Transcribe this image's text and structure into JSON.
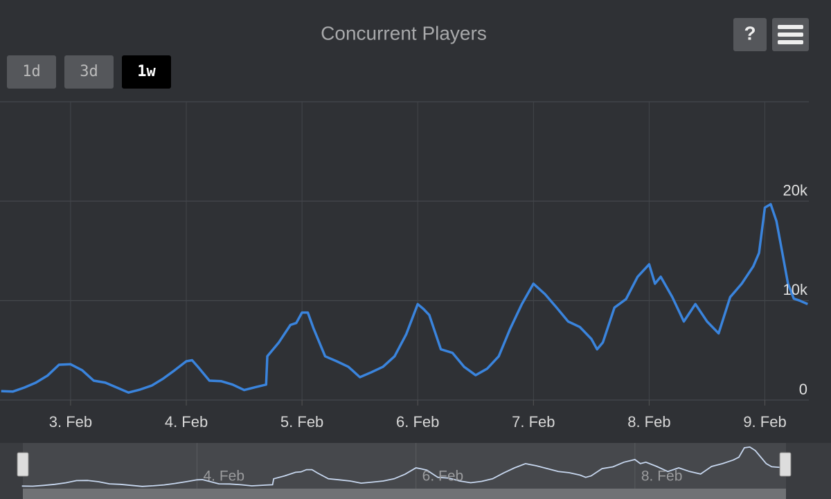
{
  "chart_data": {
    "type": "line",
    "title": "Concurrent Players",
    "buttons": [
      "1d",
      "3d",
      "1w"
    ],
    "active_button": 2,
    "help_button": "?",
    "color": "#3a84dd",
    "x": [
      2.4,
      2.5,
      2.6,
      2.7,
      2.8,
      2.9,
      3.0,
      3.1,
      3.2,
      3.3,
      3.4,
      3.5,
      3.6,
      3.7,
      3.8,
      3.9,
      4.0,
      4.05,
      4.1,
      4.2,
      4.3,
      4.4,
      4.5,
      4.6,
      4.69,
      4.7,
      4.8,
      4.9,
      4.95,
      5.0,
      5.05,
      5.1,
      5.2,
      5.3,
      5.4,
      5.5,
      5.6,
      5.7,
      5.8,
      5.9,
      6.0,
      6.05,
      6.1,
      6.2,
      6.3,
      6.4,
      6.5,
      6.6,
      6.7,
      6.8,
      6.9,
      7.0,
      7.1,
      7.2,
      7.3,
      7.4,
      7.5,
      7.55,
      7.6,
      7.7,
      7.8,
      7.9,
      8.0,
      8.05,
      8.1,
      8.2,
      8.3,
      8.4,
      8.5,
      8.6,
      8.7,
      8.8,
      8.9,
      8.95,
      9.0,
      9.05,
      9.1,
      9.15,
      9.2,
      9.25,
      9.3,
      9.37
    ],
    "values": [
      900,
      850,
      1250,
      1750,
      2450,
      3550,
      3600,
      3000,
      1950,
      1750,
      1250,
      750,
      1050,
      1450,
      2150,
      3000,
      3900,
      4000,
      3350,
      1950,
      1900,
      1550,
      1000,
      1300,
      1550,
      4400,
      5800,
      7550,
      7750,
      8800,
      8800,
      7200,
      4400,
      3900,
      3350,
      2300,
      2800,
      3350,
      4400,
      6600,
      9650,
      9150,
      8550,
      5100,
      4750,
      3350,
      2500,
      3150,
      4400,
      7200,
      9650,
      11700,
      10650,
      9300,
      7900,
      7350,
      6150,
      5100,
      5800,
      9300,
      10150,
      12400,
      13650,
      11700,
      12400,
      10350,
      7900,
      9650,
      7900,
      6700,
      10350,
      11700,
      13450,
      14800,
      19350,
      19700,
      18000,
      14850,
      11700,
      10200,
      10000,
      9650
    ],
    "xlim": [
      2.39,
      9.38
    ],
    "xticks": [
      {
        "value": 3,
        "label": "3. Feb"
      },
      {
        "value": 4,
        "label": "4. Feb"
      },
      {
        "value": 5,
        "label": "5. Feb"
      },
      {
        "value": 6,
        "label": "6. Feb"
      },
      {
        "value": 7,
        "label": "7. Feb"
      },
      {
        "value": 8,
        "label": "8. Feb"
      },
      {
        "value": 9,
        "label": "9. Feb"
      }
    ],
    "ylim": [
      0,
      30000
    ],
    "yticks": [
      0,
      {
        "value": 10000,
        "label": "10k"
      },
      {
        "value": 20000,
        "label": "20k"
      }
    ],
    "grid": true,
    "navigator": {
      "xticks": [
        {
          "value": 4,
          "label": "4. Feb"
        },
        {
          "value": 6,
          "label": "6. Feb"
        },
        {
          "value": 8,
          "label": "8. Feb"
        }
      ]
    }
  }
}
